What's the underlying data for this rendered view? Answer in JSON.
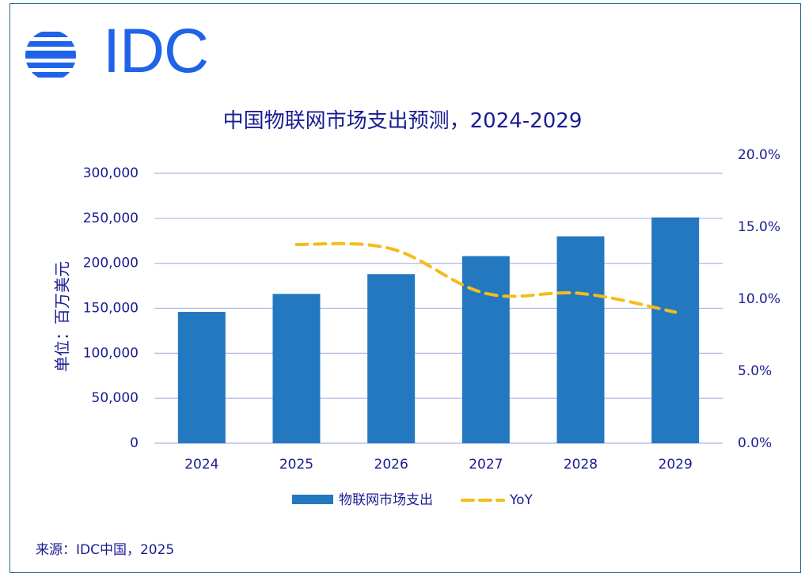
{
  "logo": {
    "text": "IDC"
  },
  "colors": {
    "bar": "#2478bf",
    "yoy": "#f4bc1c",
    "grid": "#a9b3e6",
    "text": "#1b1c91",
    "logo": "#1f63e8",
    "border": "#1f6f86"
  },
  "source": "来源：IDC中国，2025",
  "chart_data": {
    "type": "bar",
    "title": "中国物联网市场支出预测，2024-2029",
    "categories": [
      "2024",
      "2025",
      "2026",
      "2027",
      "2028",
      "2029"
    ],
    "series": [
      {
        "name": "物联网市场支出",
        "type": "bar",
        "axis": "left",
        "values": [
          146000,
          166000,
          188000,
          208000,
          230000,
          251000
        ]
      },
      {
        "name": "YoY",
        "type": "line",
        "style": "dashed",
        "axis": "right",
        "values": [
          null,
          13.8,
          13.5,
          10.4,
          10.4,
          9.1
        ]
      }
    ],
    "ylabel": "单位：百万美元",
    "ylim": [
      0,
      300000
    ],
    "y_ticks": [
      "0",
      "50,000",
      "100,000",
      "150,000",
      "200,000",
      "250,000",
      "300,000"
    ],
    "y2lim": [
      0,
      20
    ],
    "y2_ticks": [
      "0.0%",
      "5.0%",
      "10.0%",
      "15.0%",
      "20.0%"
    ],
    "legend_position": "bottom",
    "grid": true
  }
}
